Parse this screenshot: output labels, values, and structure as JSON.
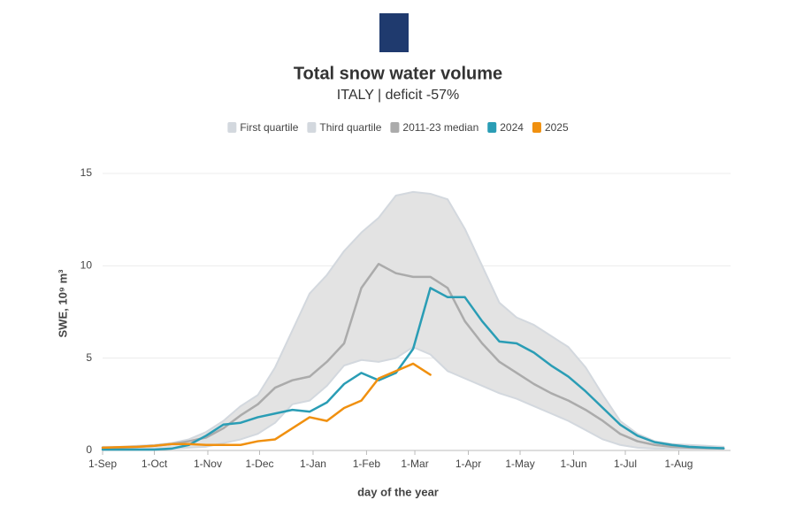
{
  "chart_data": {
    "type": "line",
    "title": "Total snow water volume",
    "subtitle": "ITALY | deficit -57%",
    "x_label": "day of the year",
    "y_label": "SWE, 10⁹ m³",
    "x": [
      0,
      10,
      20,
      30,
      40,
      50,
      60,
      70,
      80,
      90,
      100,
      110,
      120,
      130,
      140,
      150,
      160,
      170,
      180,
      190,
      200,
      210,
      220,
      230,
      240,
      250,
      260,
      270,
      280,
      290,
      300,
      310,
      320,
      330,
      340,
      350,
      360
    ],
    "xlim": [
      0,
      364
    ],
    "xticks": [
      {
        "value": 0,
        "label": "1-Sep"
      },
      {
        "value": 30,
        "label": "1-Oct"
      },
      {
        "value": 61,
        "label": "1-Nov"
      },
      {
        "value": 91,
        "label": "1-Dec"
      },
      {
        "value": 122,
        "label": "1-Jan"
      },
      {
        "value": 153,
        "label": "1-Feb"
      },
      {
        "value": 181,
        "label": "1-Mar"
      },
      {
        "value": 212,
        "label": "1-Apr"
      },
      {
        "value": 242,
        "label": "1-May"
      },
      {
        "value": 273,
        "label": "1-Jun"
      },
      {
        "value": 303,
        "label": "1-Jul"
      },
      {
        "value": 334,
        "label": "1-Aug"
      }
    ],
    "ylim": [
      0,
      15
    ],
    "yticks": [
      0,
      5,
      10,
      15
    ],
    "grid": true,
    "band_color": "#e3e3e3",
    "series": [
      {
        "name": "First quartile",
        "color": "#d3d8de",
        "role": "band",
        "values": [
          0.1,
          0.1,
          0.1,
          0.1,
          0.1,
          0.15,
          0.2,
          0.4,
          0.6,
          0.9,
          1.5,
          2.5,
          2.7,
          3.5,
          4.6,
          4.9,
          4.8,
          5.0,
          5.6,
          5.2,
          4.3,
          3.9,
          3.5,
          3.1,
          2.8,
          2.4,
          2.0,
          1.6,
          1.1,
          0.6,
          0.3,
          0.15,
          0.1,
          0.1,
          0.1,
          0.1,
          0.1
        ]
      },
      {
        "name": "Third quartile",
        "color": "#d3d8de",
        "role": "band",
        "values": [
          0.2,
          0.2,
          0.25,
          0.3,
          0.4,
          0.6,
          1.0,
          1.6,
          2.4,
          3.0,
          4.5,
          6.5,
          8.5,
          9.5,
          10.8,
          11.8,
          12.6,
          13.8,
          14.0,
          13.9,
          13.6,
          12.0,
          10.0,
          8.0,
          7.2,
          6.8,
          6.2,
          5.6,
          4.5,
          3.0,
          1.6,
          0.9,
          0.5,
          0.35,
          0.3,
          0.25,
          0.2
        ]
      },
      {
        "name": "2011-23 median",
        "color": "#ababab",
        "values": [
          0.15,
          0.15,
          0.2,
          0.25,
          0.35,
          0.5,
          0.7,
          1.2,
          1.9,
          2.5,
          3.4,
          3.8,
          4.0,
          4.8,
          5.8,
          8.8,
          10.1,
          9.6,
          9.4,
          9.4,
          8.8,
          7.0,
          5.8,
          4.8,
          4.2,
          3.6,
          3.1,
          2.7,
          2.2,
          1.6,
          0.9,
          0.5,
          0.3,
          0.2,
          0.15,
          0.12,
          0.1
        ]
      },
      {
        "name": "2024",
        "color": "#2a9db5",
        "values": [
          0.05,
          0.05,
          0.05,
          0.05,
          0.1,
          0.3,
          0.8,
          1.4,
          1.5,
          1.8,
          2.0,
          2.2,
          2.1,
          2.6,
          3.6,
          4.2,
          3.8,
          4.2,
          5.5,
          8.8,
          8.3,
          8.3,
          7.0,
          5.9,
          5.8,
          5.3,
          4.6,
          4.0,
          3.2,
          2.3,
          1.4,
          0.8,
          0.45,
          0.3,
          0.2,
          0.15,
          0.12
        ]
      },
      {
        "name": "2025",
        "color": "#f0900f",
        "values": [
          0.15,
          0.18,
          0.2,
          0.25,
          0.35,
          0.35,
          0.3,
          0.3,
          0.3,
          0.5,
          0.6,
          1.2,
          1.8,
          1.6,
          2.3,
          2.7,
          3.9,
          4.3,
          4.7,
          4.1,
          null,
          null,
          null,
          null,
          null,
          null,
          null,
          null,
          null,
          null,
          null,
          null,
          null,
          null,
          null,
          null,
          null
        ]
      }
    ]
  }
}
